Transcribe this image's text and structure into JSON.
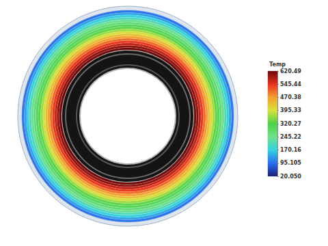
{
  "chart_data": {
    "type": "contour",
    "values": [
      620,
      600,
      570,
      540,
      505,
      470,
      435,
      400,
      365,
      330,
      300,
      270,
      240,
      205,
      170,
      135,
      100
    ],
    "colorbar": {
      "title": "Temp",
      "range": [
        20.05,
        620.49
      ],
      "ticks": [
        {
          "value": 20.05,
          "label": "20.050"
        },
        95.105,
        170.16,
        245.22,
        320.27,
        395.33,
        470.38,
        545.44,
        620.49
      ]
    }
  }
}
